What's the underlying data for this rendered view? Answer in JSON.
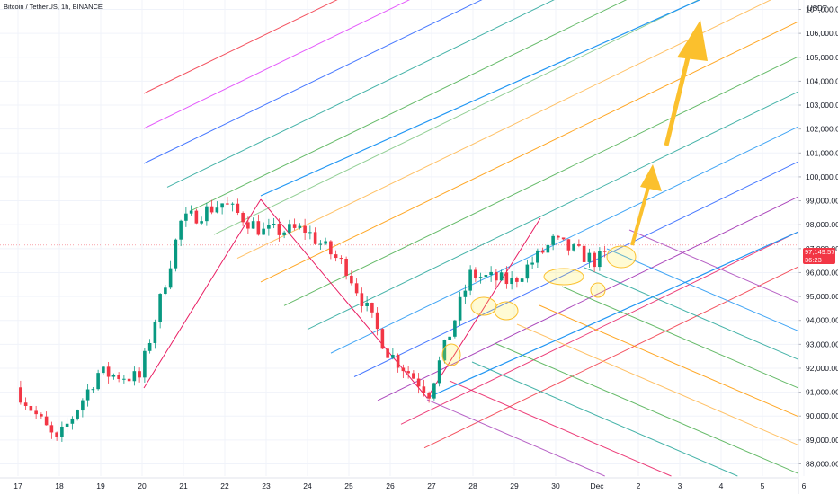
{
  "header": {
    "title": "Bitcoin / TetherUS, 1h, BINANCE",
    "unit": "USDT"
  },
  "price_tag": {
    "price": "97,149.57",
    "countdown": "36:23",
    "color": "#f23645"
  },
  "chart_data": {
    "type": "candlestick",
    "symbol": "Bitcoin / TetherUS",
    "interval": "1h",
    "exchange": "BINANCE",
    "y_axis": {
      "ticks": [
        88000,
        89000,
        90000,
        91000,
        92000,
        93000,
        94000,
        95000,
        96000,
        97000,
        98000,
        99000,
        100000,
        101000,
        102000,
        103000,
        104000,
        105000,
        106000,
        107000
      ],
      "tick_labels": [
        "88,000.00",
        "89,000.00",
        "90,000.00",
        "91,000.00",
        "92,000.00",
        "93,000.00",
        "94,000.00",
        "95,000.00",
        "96,000.00",
        "97,000.00",
        "98,000.00",
        "99,000.00",
        "100,000.00",
        "101,000.00",
        "102,000.00",
        "103,000.00",
        "104,000.00",
        "105,000.00",
        "106,000.00",
        "107,000.00"
      ],
      "range": [
        87500,
        107500
      ]
    },
    "x_axis": {
      "tick_labels": [
        "17",
        "18",
        "19",
        "20",
        "21",
        "22",
        "23",
        "24",
        "25",
        "26",
        "27",
        "28",
        "29",
        "30",
        "Dec",
        "2",
        "3",
        "4",
        "5",
        "6"
      ]
    },
    "current_price": 97149.57,
    "colors": {
      "up": "#089981",
      "down": "#f23645"
    },
    "key_prices": [
      {
        "day": "17",
        "price": 91200
      },
      {
        "day": "18",
        "price": 88900
      },
      {
        "day": "19",
        "price": 91800
      },
      {
        "day": "20",
        "price": 91600
      },
      {
        "day": "21",
        "price": 98100
      },
      {
        "day": "22",
        "price": 98900
      },
      {
        "day": "23",
        "price": 97700
      },
      {
        "day": "24",
        "price": 97800
      },
      {
        "day": "25",
        "price": 96200
      },
      {
        "day": "26",
        "price": 92700
      },
      {
        "day": "27",
        "price": 91000
      },
      {
        "day": "28",
        "price": 95900
      },
      {
        "day": "29",
        "price": 95600
      },
      {
        "day": "30",
        "price": 97300
      },
      {
        "day": "Dec",
        "price": 96500
      },
      {
        "day": "2",
        "price": 97150
      }
    ]
  }
}
